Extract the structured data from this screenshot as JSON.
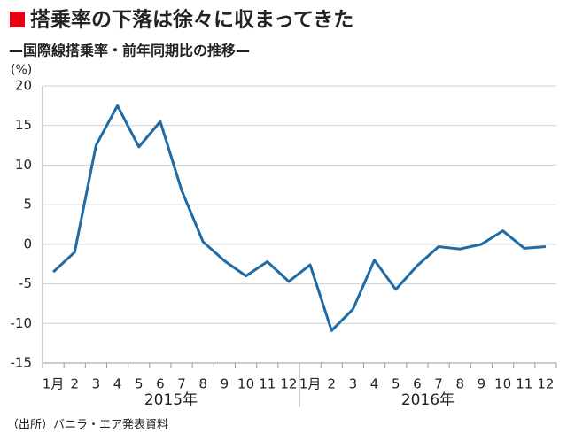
{
  "chart_data": {
    "type": "line",
    "title": "搭乗率の下落は徐々に収まってきた",
    "subtitle": "—国際線搭乗率・前年同期比の推移—",
    "y_label": "(%)",
    "categories": [
      "1月",
      "2",
      "3",
      "4",
      "5",
      "6",
      "7",
      "8",
      "9",
      "10",
      "11",
      "12",
      "1月",
      "2",
      "3",
      "4",
      "5",
      "6",
      "7",
      "8",
      "9",
      "10",
      "11",
      "12"
    ],
    "year_labels": [
      "2015年",
      "2016年"
    ],
    "series": [
      {
        "name": "国際線搭乗率・前年同期比",
        "color": "#1f6ba5",
        "values": [
          -3.5,
          -1.0,
          12.5,
          17.5,
          12.3,
          15.5,
          6.8,
          0.3,
          -2.1,
          -4.0,
          -2.2,
          -4.7,
          -2.6,
          -10.9,
          -8.2,
          -2.0,
          -5.7,
          -2.7,
          -0.3,
          -0.6,
          0.0,
          1.7,
          -0.5,
          -0.3
        ]
      }
    ],
    "ylim": [
      -15,
      20
    ],
    "yticks": [
      20,
      15,
      10,
      5,
      0,
      -5,
      -10,
      -15
    ],
    "grid": true,
    "source": "（出所）バニラ・エア発表資料"
  }
}
